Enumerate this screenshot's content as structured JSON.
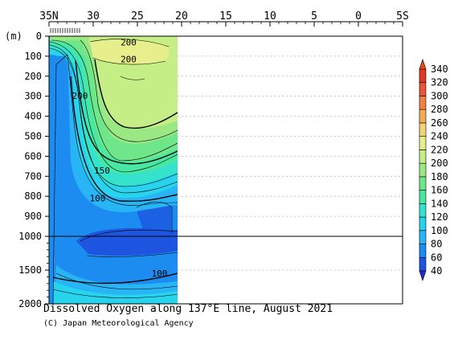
{
  "chart_data": {
    "type": "contour",
    "title": "Dissolved Oxygen along 137°E line, August 2021",
    "credit": "(C) Japan Meteorological Agency",
    "y_unit": "(m)",
    "x_tick_labels": [
      "35N",
      "30",
      "25",
      "20",
      "15",
      "10",
      "5",
      "0",
      "5S"
    ],
    "x_range": [
      35,
      -5
    ],
    "y_ticks_upper": [
      "0",
      "100",
      "200",
      "300",
      "400",
      "500",
      "600",
      "700",
      "800",
      "900",
      "1000"
    ],
    "y_ticks_lower": [
      "1500",
      "2000"
    ],
    "ylim": [
      0,
      2000
    ],
    "data_extent_latitude": [
      34,
      20
    ],
    "colorbar": {
      "levels": [
        40,
        60,
        80,
        100,
        120,
        140,
        160,
        180,
        200,
        220,
        240,
        260,
        280,
        300,
        320,
        340
      ],
      "labels": [
        "40",
        "60",
        "80",
        "100",
        "120",
        "140",
        "160",
        "180",
        "200",
        "220",
        "240",
        "260",
        "280",
        "300",
        "320",
        "340"
      ],
      "colors": [
        "#1d55e0",
        "#1d8cf0",
        "#28b4f5",
        "#28d3ee",
        "#35e3cd",
        "#48e8a2",
        "#6fe68a",
        "#9ae884",
        "#c6ee86",
        "#e6ef8c",
        "#f3d278",
        "#f3ac56",
        "#ee8246",
        "#e85638",
        "#df3825",
        "#ea4712"
      ]
    },
    "contour_labels": [
      {
        "text": "200",
        "lat": 26,
        "depth": 30
      },
      {
        "text": "200",
        "lat": 26,
        "depth": 115
      },
      {
        "text": "200",
        "lat": 31.5,
        "depth": 298
      },
      {
        "text": "150",
        "lat": 29,
        "depth": 670
      },
      {
        "text": "100",
        "lat": 29.5,
        "depth": 810
      },
      {
        "text": "100",
        "lat": 22.5,
        "depth": 1545
      }
    ]
  }
}
